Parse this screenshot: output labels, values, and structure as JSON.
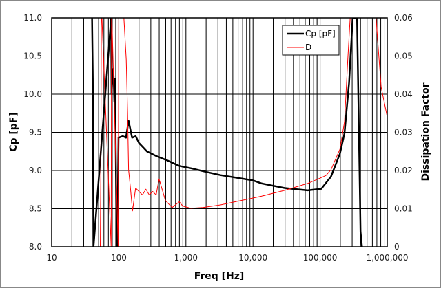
{
  "chart_data": {
    "type": "line",
    "xlabel": "Freq [Hz]",
    "ylabel": "Cp [pF]",
    "y2label": "Dissipation Factor",
    "xscale": "log",
    "xlim": [
      10,
      1000000
    ],
    "ylim": [
      8.0,
      11.0
    ],
    "y2lim": [
      0,
      0.06
    ],
    "grid": true,
    "legend_position": "top-right",
    "x_ticks": [
      {
        "v": 10,
        "label": "10"
      },
      {
        "v": 100,
        "label": "100"
      },
      {
        "v": 1000,
        "label": "1,000"
      },
      {
        "v": 10000,
        "label": "10,000"
      },
      {
        "v": 100000,
        "label": "100,000"
      },
      {
        "v": 1000000,
        "label": "1,000,000"
      }
    ],
    "y_ticks": [
      {
        "v": 8.0,
        "label": "8.0"
      },
      {
        "v": 8.5,
        "label": "8.5"
      },
      {
        "v": 9.0,
        "label": "9.0"
      },
      {
        "v": 9.5,
        "label": "9.5"
      },
      {
        "v": 10.0,
        "label": "10.0"
      },
      {
        "v": 10.5,
        "label": "10.5"
      },
      {
        "v": 11.0,
        "label": "11.0"
      }
    ],
    "y2_ticks": [
      {
        "v": 0,
        "label": "0"
      },
      {
        "v": 0.01,
        "label": "0.01"
      },
      {
        "v": 0.02,
        "label": "0.02"
      },
      {
        "v": 0.03,
        "label": "0.03"
      },
      {
        "v": 0.04,
        "label": "0.04"
      },
      {
        "v": 0.05,
        "label": "0.05"
      },
      {
        "v": 0.06,
        "label": "0.06"
      }
    ],
    "series": [
      {
        "name": "Cp [pF]",
        "axis": "left",
        "color": "#000000",
        "x": [
          40,
          41,
          42,
          77,
          78,
          80,
          83,
          86,
          88,
          93,
          95,
          99,
          115,
          128,
          140,
          158,
          178,
          200,
          263,
          360,
          534,
          795,
          1180,
          2030,
          3280,
          10000,
          13500,
          29600,
          64900,
          104000,
          145000,
          197000,
          231000,
          270000,
          305000,
          330000,
          355000,
          400000,
          420000
        ],
        "y": [
          11.5,
          10.2,
          7.5,
          11.5,
          10.0,
          10.2,
          10.33,
          9.9,
          10.2,
          7.5,
          7.5,
          9.43,
          9.45,
          9.43,
          9.65,
          9.43,
          9.45,
          9.36,
          9.25,
          9.19,
          9.13,
          9.06,
          9.03,
          8.98,
          8.94,
          8.87,
          8.83,
          8.77,
          8.74,
          8.76,
          8.92,
          9.22,
          9.49,
          10.15,
          11.0,
          11.5,
          11.2,
          8.2,
          7.0
        ]
      },
      {
        "name": "D",
        "axis": "right",
        "color": "#ff0000",
        "x": [
          53,
          54,
          55,
          56,
          77,
          78,
          79,
          98,
          100,
          119,
          129,
          135,
          140,
          149,
          160,
          178,
          225,
          253,
          284,
          320,
          360,
          398,
          495,
          625,
          795,
          895,
          1180,
          1800,
          3280,
          13500,
          29600,
          64900,
          100000,
          122000,
          145000,
          197000,
          231000,
          258000,
          280000,
          300000,
          650000,
          680000,
          810000,
          1000000
        ],
        "y": [
          -0.01,
          0.02,
          0.08,
          0.08,
          -0.01,
          0.08,
          0.08,
          -0.01,
          0.08,
          0.06,
          0.049,
          0.0353,
          0.0202,
          0.0154,
          0.0094,
          0.0154,
          0.0136,
          0.0151,
          0.0136,
          0.0145,
          0.0136,
          0.0178,
          0.0121,
          0.0103,
          0.0118,
          0.0107,
          0.0101,
          0.0103,
          0.011,
          0.0133,
          0.0148,
          0.0166,
          0.018,
          0.0187,
          0.0202,
          0.0256,
          0.0328,
          0.049,
          0.06,
          0.08,
          0.08,
          0.06,
          0.0419,
          0.034
        ]
      }
    ]
  }
}
